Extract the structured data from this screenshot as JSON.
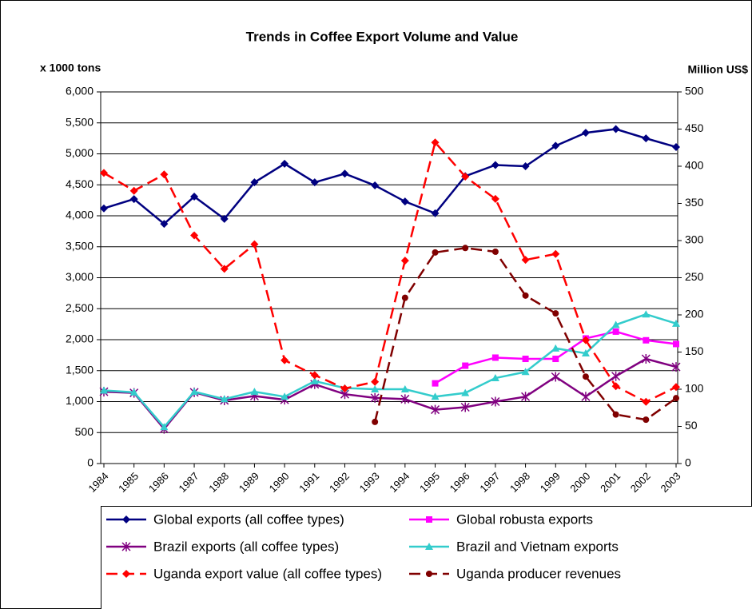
{
  "chart_data": {
    "type": "line",
    "title": "Trends in Coffee Export Volume and Value",
    "ylabel": "x 1000 tons",
    "y2label": "Million US$",
    "categories": [
      "1984",
      "1985",
      "1986",
      "1987",
      "1988",
      "1989",
      "1990",
      "1991",
      "1992",
      "1993",
      "1994",
      "1995",
      "1996",
      "1997",
      "1998",
      "1999",
      "2000",
      "2001",
      "2002",
      "2003"
    ],
    "ylim": [
      0,
      6000
    ],
    "yticks": [
      0,
      500,
      {
        "value": 1000,
        "label": "1,000"
      },
      {
        "value": 1500,
        "label": "1,500"
      },
      {
        "value": 2000,
        "label": "2,000"
      },
      {
        "value": 2500,
        "label": "2,500"
      },
      {
        "value": 3000,
        "label": "3,000"
      },
      {
        "value": 3500,
        "label": "3,500"
      },
      {
        "value": 4000,
        "label": "4,000"
      },
      {
        "value": 4500,
        "label": "4,500"
      },
      {
        "value": 5000,
        "label": "5,000"
      },
      {
        "value": 5500,
        "label": "5,500"
      },
      {
        "value": 6000,
        "label": "6,000"
      }
    ],
    "y2lim": [
      0,
      500
    ],
    "y2ticks": [
      0,
      50,
      100,
      150,
      200,
      250,
      300,
      350,
      400,
      450,
      500
    ],
    "grid": true,
    "legend": "bottom",
    "series": [
      {
        "name": "Global exports (all coffee types)",
        "color": "#000080",
        "marker": "diamond",
        "dashed": false,
        "values": [
          4120,
          4270,
          3870,
          4310,
          3950,
          4540,
          4840,
          4540,
          4680,
          4490,
          4230,
          4040,
          4640,
          4820,
          4800,
          5130,
          5340,
          5400,
          5250,
          5110
        ]
      },
      {
        "name": "Global robusta exports",
        "color": "#ff00ff",
        "marker": "square",
        "dashed": false,
        "values": [
          null,
          null,
          null,
          null,
          null,
          null,
          null,
          null,
          null,
          null,
          null,
          1295,
          1580,
          1710,
          1690,
          1690,
          2020,
          2130,
          1990,
          1930
        ]
      },
      {
        "name": "Brazil exports (all coffee types)",
        "color": "#800080",
        "marker": "star",
        "dashed": false,
        "values": [
          1160,
          1140,
          560,
          1150,
          1020,
          1090,
          1030,
          1280,
          1120,
          1060,
          1040,
          870,
          910,
          1000,
          1080,
          1400,
          1080,
          1410,
          1690,
          1560
        ]
      },
      {
        "name": "Brazil and Vietnam exports",
        "color": "#33cccc",
        "marker": "triangle",
        "dashed": false,
        "values": [
          1180,
          1150,
          590,
          1160,
          1040,
          1160,
          1080,
          1330,
          1220,
          1200,
          1200,
          1080,
          1140,
          1380,
          1480,
          1860,
          1780,
          2240,
          2410,
          2260
        ]
      },
      {
        "name": "Uganda export value (all coffee types)",
        "color": "#ff0000",
        "marker": "diamond",
        "dashed": true,
        "axis": "y2",
        "values": [
          391,
          367,
          389,
          307,
          262,
          295,
          139,
          119,
          101,
          110,
          273,
          432,
          386,
          356,
          274,
          282,
          166,
          104,
          83,
          103
        ]
      },
      {
        "name": "Uganda producer revenues",
        "color": "#800000",
        "marker": "circle",
        "dashed": true,
        "axis": "y2",
        "values": [
          null,
          null,
          null,
          null,
          null,
          null,
          null,
          null,
          null,
          56,
          223,
          284,
          290,
          285,
          226,
          202,
          117,
          66,
          59,
          88
        ]
      }
    ]
  }
}
